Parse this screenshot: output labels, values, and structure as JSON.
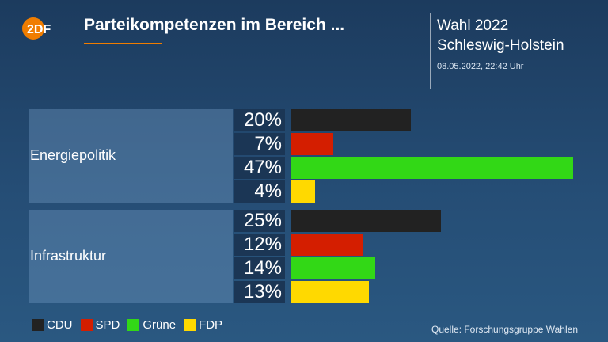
{
  "header": {
    "logo_text": "2DF",
    "title": "Parteikompetenzen im Bereich ...",
    "election_line1": "Wahl 2022",
    "election_line2": "Schleswig-Holstein",
    "datetime": "08.05.2022, 22:42 Uhr"
  },
  "colors": {
    "CDU": "#222222",
    "SPD": "#d41e00",
    "Grüne": "#32d816",
    "FDP": "#ffd900",
    "accent": "#f07d00"
  },
  "chart_data": {
    "type": "bar",
    "orientation": "horizontal",
    "unit": "%",
    "categories": [
      "Energiepolitik",
      "Infrastruktur"
    ],
    "series": [
      {
        "name": "CDU",
        "values": [
          20,
          25
        ]
      },
      {
        "name": "SPD",
        "values": [
          7,
          12
        ]
      },
      {
        "name": "Grüne",
        "values": [
          47,
          14
        ]
      },
      {
        "name": "FDP",
        "values": [
          4,
          13
        ]
      }
    ],
    "value_labels": [
      [
        "20%",
        "7%",
        "47%",
        "4%"
      ],
      [
        "25%",
        "12%",
        "14%",
        "13%"
      ]
    ],
    "xlim": [
      0,
      47
    ],
    "legend": [
      "CDU",
      "SPD",
      "Grüne",
      "FDP"
    ],
    "legend_position": "bottom-left",
    "grid": false
  },
  "footer": {
    "source": "Quelle: Forschungsgruppe Wahlen"
  }
}
